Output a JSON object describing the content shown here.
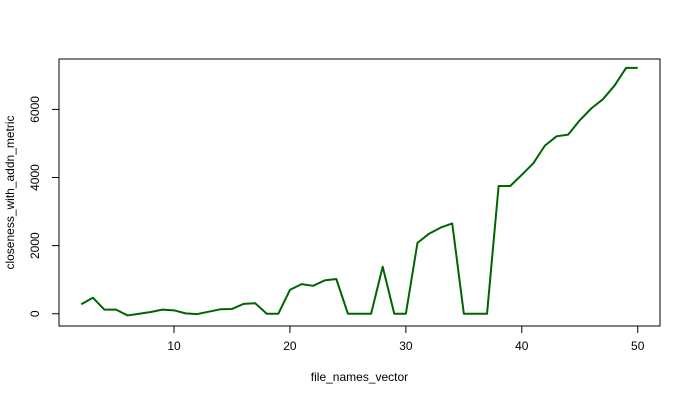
{
  "chart_data": {
    "type": "line",
    "title": "",
    "xlabel": "file_names_vector",
    "ylabel": "closeness_with_addn_metric",
    "xlim": [
      0.08,
      51.92
    ],
    "ylim": [
      -360,
      7480
    ],
    "x_ticks": [
      10,
      20,
      30,
      40,
      50
    ],
    "y_ticks": [
      0,
      2000,
      4000,
      6000
    ],
    "grid": false,
    "line_color": "#006400",
    "series": [
      {
        "x": [
          2,
          3,
          4,
          5,
          6,
          7,
          8,
          9,
          10,
          11,
          12,
          13,
          14,
          15,
          16,
          17,
          18,
          19,
          20,
          21,
          22,
          23,
          24,
          25,
          26,
          27,
          28,
          29,
          30,
          31,
          32,
          33,
          34,
          35,
          36,
          37,
          38,
          39,
          40,
          41,
          42,
          43,
          44,
          45,
          46,
          47,
          48,
          49,
          50
        ],
        "values": [
          280,
          470,
          120,
          120,
          -50,
          0,
          50,
          120,
          100,
          10,
          -10,
          60,
          130,
          140,
          290,
          310,
          0,
          0,
          700,
          870,
          820,
          980,
          1020,
          0,
          0,
          0,
          1380,
          0,
          0,
          2080,
          2350,
          2530,
          2650,
          0,
          0,
          0,
          3750,
          3750,
          4080,
          4420,
          4940,
          5210,
          5260,
          5680,
          6030,
          6300,
          6700,
          7220,
          7220
        ]
      }
    ]
  }
}
